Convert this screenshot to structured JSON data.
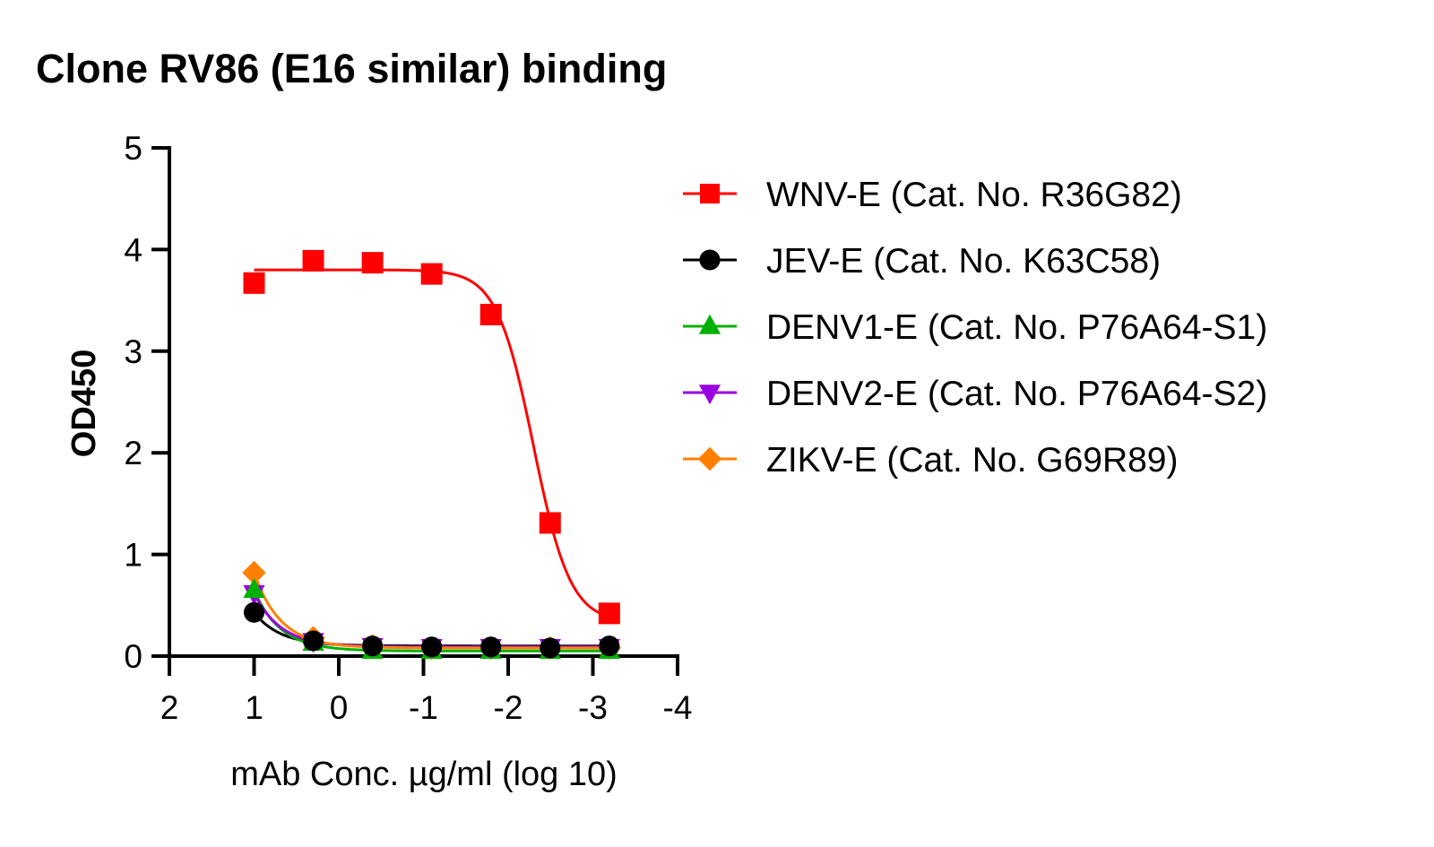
{
  "chart_data": {
    "type": "line",
    "title": "Clone RV86 (E16 similar) binding",
    "xlabel": "mAb Conc. µg/ml (log 10)",
    "ylabel": "OD450",
    "xlim": [
      2,
      -4
    ],
    "ylim": [
      0,
      5
    ],
    "xticks": [
      "2",
      "1",
      "0",
      "-1",
      "-2",
      "-3",
      "-4"
    ],
    "xtick_values": [
      2,
      1,
      0,
      -1,
      -2,
      -3,
      -4
    ],
    "yticks": [
      "0",
      "1",
      "2",
      "3",
      "4",
      "5"
    ],
    "ytick_values": [
      0,
      1,
      2,
      3,
      4,
      5
    ],
    "grid": false,
    "legend_position": "right",
    "x": [
      1,
      0.301,
      -0.398,
      -1.097,
      -1.796,
      -2.495,
      -3.194
    ],
    "series": [
      {
        "name": "WNV-E (Cat. No. R36G82)",
        "color": "#ff0000",
        "marker": "square",
        "values": [
          3.67,
          3.89,
          3.87,
          3.76,
          3.36,
          1.31,
          0.42
        ]
      },
      {
        "name": "JEV-E (Cat. No. K63C58)",
        "color": "#000000",
        "marker": "circle",
        "values": [
          0.43,
          0.15,
          0.1,
          0.09,
          0.09,
          0.08,
          0.1
        ]
      },
      {
        "name": "DENV1-E (Cat. No. P76A64-S1)",
        "color": "#00b000",
        "marker": "triangle-up",
        "values": [
          0.65,
          0.13,
          0.05,
          0.05,
          0.05,
          0.05,
          0.05
        ]
      },
      {
        "name": "DENV2-E (Cat. No. P76A64-S2)",
        "color": "#9b00e0",
        "marker": "triangle-down",
        "values": [
          0.62,
          0.15,
          0.1,
          0.09,
          0.09,
          0.09,
          0.09
        ]
      },
      {
        "name": "ZIKV-E (Cat. No. G69R89)",
        "color": "#ff8000",
        "marker": "diamond",
        "values": [
          0.82,
          0.18,
          0.1,
          0.08,
          0.08,
          0.08,
          0.08
        ]
      }
    ]
  }
}
